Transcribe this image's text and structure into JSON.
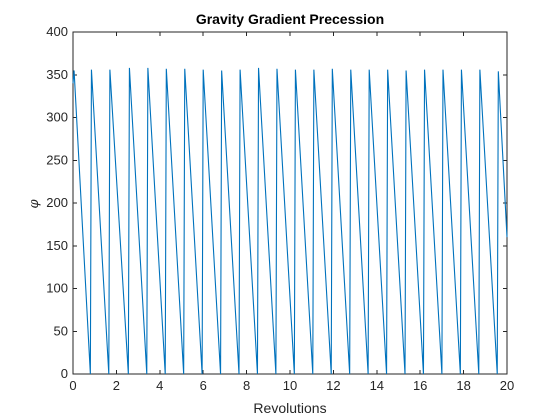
{
  "chart_data": {
    "type": "line",
    "title": "Gravity Gradient Precession",
    "xlabel": "Revolutions",
    "ylabel": "φ",
    "xlim": [
      0,
      20
    ],
    "ylim": [
      0,
      400
    ],
    "xticks": [
      "0",
      "2",
      "4",
      "6",
      "8",
      "10",
      "12",
      "14",
      "16",
      "18",
      "20"
    ],
    "yticks": [
      "0",
      "50",
      "100",
      "150",
      "200",
      "250",
      "300",
      "350",
      "400"
    ],
    "grid": false,
    "line_color": "#0072BD",
    "series": [
      {
        "x": [
          0,
          0.05,
          0.8,
          0.85,
          1.65,
          1.7,
          2.55,
          2.6,
          3.4,
          3.45,
          4.25,
          4.3,
          5.1,
          5.15,
          5.95,
          6.0,
          6.8,
          6.85,
          7.65,
          7.7,
          8.5,
          8.55,
          9.35,
          9.4,
          10.2,
          10.25,
          11.05,
          11.1,
          11.9,
          11.95,
          12.75,
          12.8,
          13.6,
          13.65,
          14.45,
          14.5,
          15.3,
          15.35,
          16.15,
          16.2,
          17.0,
          17.05,
          17.85,
          17.9,
          18.7,
          18.75,
          19.55,
          19.6,
          20.0
        ],
        "y": [
          340,
          355,
          0,
          356,
          0,
          356,
          0,
          358,
          0,
          358,
          0,
          357,
          0,
          357,
          0,
          356,
          0,
          355,
          0,
          356,
          0,
          358,
          0,
          357,
          0,
          356,
          0,
          356,
          0,
          357,
          0,
          356,
          0,
          356,
          0,
          356,
          0,
          355,
          0,
          356,
          0,
          356,
          0,
          356,
          0,
          356,
          0,
          354,
          160
        ]
      }
    ]
  }
}
